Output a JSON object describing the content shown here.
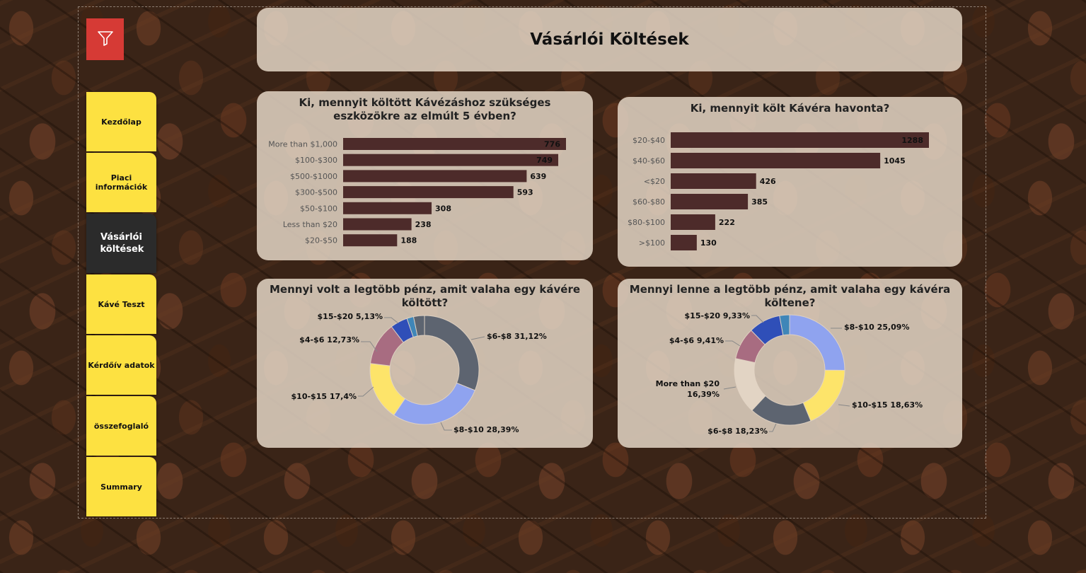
{
  "page": {
    "title": "Vásárlói Költések"
  },
  "nav": {
    "items": [
      {
        "label": "Kezdőlap"
      },
      {
        "label": "Piaci információk"
      },
      {
        "label": "Vásárlói költések"
      },
      {
        "label": "Kávé Teszt"
      },
      {
        "label": "Kérdőív adatok"
      },
      {
        "label": "összefoglaló"
      },
      {
        "label": "Summary"
      }
    ],
    "active_index": 2
  },
  "icons": {
    "filter": "filter-icon"
  },
  "colors": {
    "bar": "#4d2b2a",
    "slate": "#5d6470",
    "periwinkle": "#8fa3ef",
    "yellow": "#fde46a",
    "mauve": "#a86c81",
    "blue": "#2f4fb8",
    "teal": "#3f86b8"
  },
  "chart_data": [
    {
      "type": "bar",
      "title": "Ki, mennyit költött Kávézáshoz szükséges eszközökre az elmúlt 5 évben?",
      "categories": [
        "More than $1,000",
        "$100-$300",
        "$500-$1000",
        "$300-$500",
        "$50-$100",
        "Less than $20",
        "$20-$50"
      ],
      "values": [
        776,
        749,
        639,
        593,
        308,
        238,
        188
      ],
      "orientation": "horizontal"
    },
    {
      "type": "bar",
      "title": "Ki, mennyit költ Kávéra havonta?",
      "categories": [
        "$20-$40",
        "$40-$60",
        "<$20",
        "$60-$80",
        "$80-$100",
        ">$100"
      ],
      "values": [
        1288,
        1045,
        426,
        385,
        222,
        130
      ],
      "orientation": "horizontal"
    },
    {
      "type": "pie",
      "title": "Mennyi volt a legtöbb pénz, amit valaha egy kávére költött?",
      "donut": true,
      "slices": [
        {
          "label": "$6-$8 31,12%",
          "value": 31.12,
          "color": "#5d6470"
        },
        {
          "label": "$8-$10 28,39%",
          "value": 28.39,
          "color": "#8fa3ef"
        },
        {
          "label": "$10-$15 17,4%",
          "value": 17.4,
          "color": "#fde46a"
        },
        {
          "label": "$4-$6 12,73%",
          "value": 12.73,
          "color": "#a86c81"
        },
        {
          "label": "$15-$20 5,13%",
          "value": 5.13,
          "color": "#2f4fb8"
        },
        {
          "label": "",
          "value": 2.0,
          "color": "#3f86b8"
        },
        {
          "label": "",
          "value": 3.23,
          "color": "#5d6470"
        }
      ]
    },
    {
      "type": "pie",
      "title": "Mennyi lenne a legtöbb pénz, amit valaha egy kávéra költene?",
      "donut": true,
      "slices": [
        {
          "label": "$8-$10 25,09%",
          "value": 25.09,
          "color": "#8fa3ef"
        },
        {
          "label": "$10-$15 18,63%",
          "value": 18.63,
          "color": "#fde46a"
        },
        {
          "label": "$6-$8 18,23%",
          "value": 18.23,
          "color": "#5d6470"
        },
        {
          "label": "More than $20 16,39%",
          "value": 16.39,
          "color": "#e2d4c4"
        },
        {
          "label": "$4-$6 9,41%",
          "value": 9.41,
          "color": "#a86c81"
        },
        {
          "label": "$15-$20 9,33%",
          "value": 9.33,
          "color": "#2f4fb8"
        },
        {
          "label": "",
          "value": 2.92,
          "color": "#3f86b8"
        }
      ]
    }
  ]
}
